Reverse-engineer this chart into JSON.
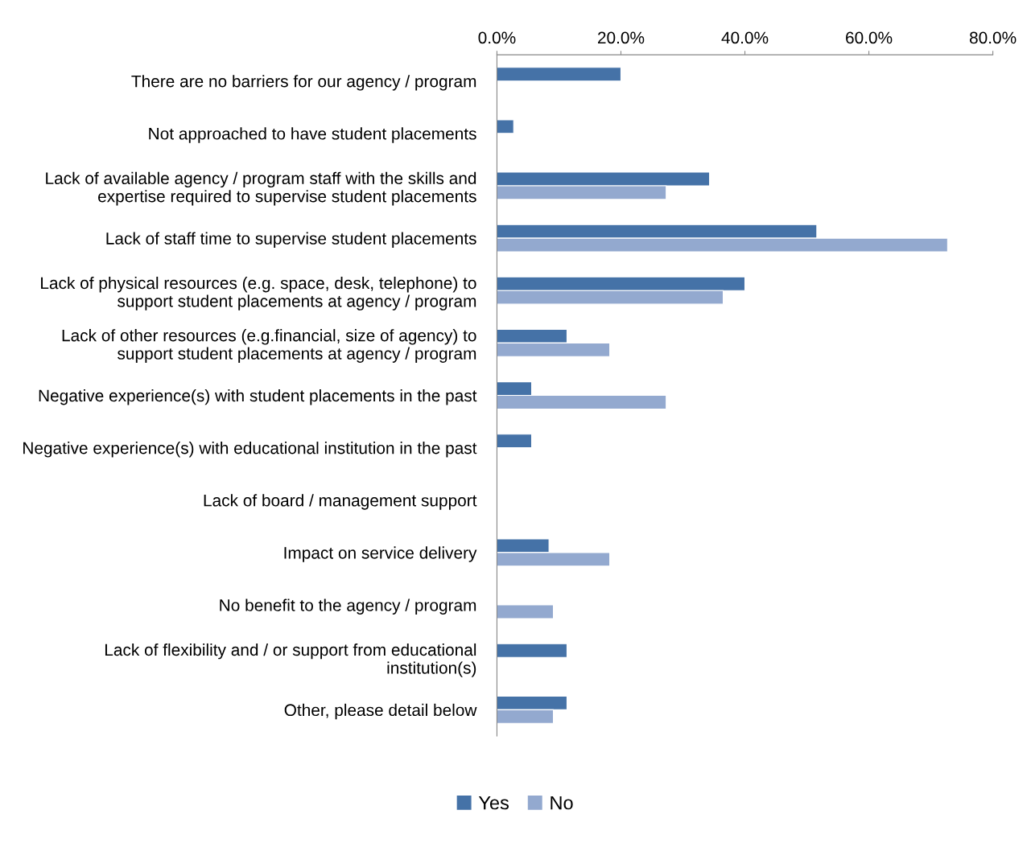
{
  "chart_data": {
    "type": "bar",
    "orientation": "horizontal",
    "categories": [
      "There are no barriers for our agency / program",
      "Not approached to have student placements",
      "Lack of available agency / program staff with the skills and\nexpertise required to supervise student placements",
      "Lack of staff time to supervise student placements",
      "Lack of physical resources (e.g. space, desk, telephone) to\nsupport student placements at agency / program",
      "Lack of other resources (e.g.financial, size of agency) to\nsupport student placements at agency / program",
      "Negative experience(s) with student placements in the past",
      "Negative experience(s) with educational institution in the past",
      "Lack of board / management support",
      "Impact on service delivery",
      "No benefit to the agency / program",
      "Lack of flexibility and / or support from educational\ninstitution(s)",
      "Other, please detail below"
    ],
    "series": [
      {
        "name": "Yes",
        "color": "#4572a7",
        "values": [
          20.0,
          2.7,
          34.3,
          51.6,
          40.0,
          11.3,
          5.6,
          5.6,
          null,
          8.4,
          null,
          11.3,
          11.3
        ]
      },
      {
        "name": "No",
        "color": "#93a9cf",
        "values": [
          null,
          null,
          27.3,
          72.7,
          36.5,
          18.2,
          27.3,
          null,
          null,
          18.2,
          9.1,
          null,
          9.1
        ]
      }
    ],
    "xlim": [
      0,
      80
    ],
    "xticks": [
      {
        "value": 0,
        "label": "0.0%"
      },
      {
        "value": 20,
        "label": "20.0%"
      },
      {
        "value": 40,
        "label": "40.0%"
      },
      {
        "value": 60,
        "label": "60.0%"
      },
      {
        "value": 80,
        "label": "80.0%"
      }
    ],
    "grid": false,
    "legend": "bottom"
  }
}
